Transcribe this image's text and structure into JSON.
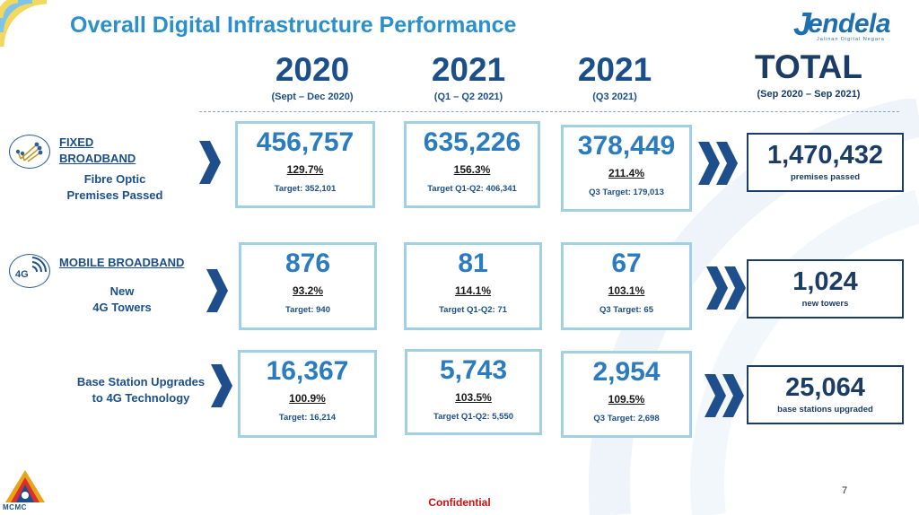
{
  "header": {
    "title": "Overall Digital Infrastructure Performance",
    "logo_text": "endela",
    "logo_initial": "J",
    "logo_tagline": "Jalinan Digital Negara"
  },
  "columns": [
    {
      "year": "2020",
      "range": "(Sept – Dec 2020)"
    },
    {
      "year": "2021",
      "range": "(Q1 – Q2 2021)"
    },
    {
      "year": "2021",
      "range": "(Q3 2021)"
    },
    {
      "year": "TOTAL",
      "range": "(Sep 2020 – Sep 2021)"
    }
  ],
  "rows": [
    {
      "label_head": "FIXED BROADBAND",
      "label_sub1": "Fibre Optic",
      "label_sub2": "Premises Passed",
      "cells": [
        {
          "value": "456,757",
          "pct": "129.7%",
          "target": "Target: 352,101"
        },
        {
          "value": "635,226",
          "pct": "156.3%",
          "target": "Target Q1-Q2: 406,341"
        },
        {
          "value": "378,449",
          "pct": "211.4%",
          "target": "Q3 Target: 179,013"
        }
      ],
      "total": {
        "value": "1,470,432",
        "label": "premises passed"
      }
    },
    {
      "label_head": "MOBILE BROADBAND",
      "label_sub1": "New",
      "label_sub2": "4G Towers",
      "cells": [
        {
          "value": "876",
          "pct": "93.2%",
          "target": "Target: 940"
        },
        {
          "value": "81",
          "pct": "114.1%",
          "target": "Target Q1-Q2: 71"
        },
        {
          "value": "67",
          "pct": "103.1%",
          "target": "Q3 Target: 65"
        }
      ],
      "total": {
        "value": "1,024",
        "label": "new towers"
      }
    },
    {
      "label_sub1": "Base Station Upgrades",
      "label_sub2": "to 4G Technology",
      "cells": [
        {
          "value": "16,367",
          "pct": "100.9%",
          "target": "Target: 16,214"
        },
        {
          "value": "5,743",
          "pct": "103.5%",
          "target": "Target Q1-Q2: 5,550"
        },
        {
          "value": "2,954",
          "pct": "109.5%",
          "target": "Q3 Target: 2,698"
        }
      ],
      "total": {
        "value": "25,064",
        "label": "base stations upgraded"
      }
    }
  ],
  "icons": {
    "fixed": "fibre-optic-icon",
    "mobile": "4g-signal-icon",
    "mobile_text": "4G"
  },
  "footer": {
    "confidential": "Confidential",
    "page_number": "7",
    "org_logo_text": "MCMC"
  },
  "colors": {
    "title": "#2a8fcd",
    "navy": "#1b4f8a",
    "card_border": "#9fd0e6",
    "confidential": "#cc1111"
  }
}
